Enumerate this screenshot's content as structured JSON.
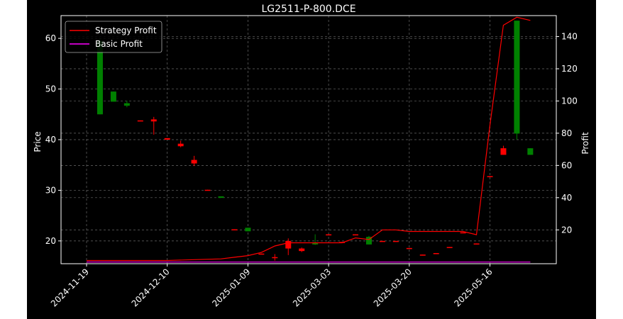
{
  "chart_data": {
    "type": "candlestick_with_profit_lines",
    "title": "LG2511-P-800.DCE",
    "ylabel_left": "Price",
    "ylabel_right": "Profit",
    "xlabel": "",
    "ylim_left": [
      15.5,
      64.5
    ],
    "ylim_right": [
      -1,
      153
    ],
    "yticks_left": [
      20,
      30,
      40,
      50,
      60
    ],
    "yticks_right": [
      20,
      40,
      60,
      80,
      100,
      120,
      140
    ],
    "xticks": [
      {
        "index": 0,
        "label": "2024-11-19"
      },
      {
        "index": 6,
        "label": "2024-12-10"
      },
      {
        "index": 12,
        "label": "2025-01-09"
      },
      {
        "index": 18,
        "label": "2025-03-03"
      },
      {
        "index": 24,
        "label": "2025-03-20"
      },
      {
        "index": 30,
        "label": "2025-05-16"
      }
    ],
    "grid": true,
    "legend_position": "top-left",
    "colors": {
      "background": "#000000",
      "up": "#008000",
      "down": "#ff0000",
      "strategy": "#ff0000",
      "basic": "#ff00ff",
      "grid": "#6a6a6a",
      "text": "#ffffff"
    },
    "candles": [
      {
        "i": 1,
        "open": 45.0,
        "close": 59.5,
        "high": 60.0,
        "low": 45.0
      },
      {
        "i": 2,
        "open": 47.5,
        "close": 49.5,
        "high": 49.5,
        "low": 47.5
      },
      {
        "i": 3,
        "open": 46.7,
        "close": 47.2,
        "high": 47.7,
        "low": 46.4
      },
      {
        "i": 4,
        "open": 43.8,
        "close": 43.7,
        "high": 43.8,
        "low": 43.7
      },
      {
        "i": 5,
        "open": 44.0,
        "close": 43.6,
        "high": 44.5,
        "low": 41.0
      },
      {
        "i": 6,
        "open": 40.3,
        "close": 40.0,
        "high": 40.3,
        "low": 40.0
      },
      {
        "i": 7,
        "open": 39.2,
        "close": 38.7,
        "high": 39.8,
        "low": 38.5
      },
      {
        "i": 8,
        "open": 36.0,
        "close": 35.3,
        "high": 36.8,
        "low": 34.8
      },
      {
        "i": 9,
        "open": 30.1,
        "close": 30.0,
        "high": 30.1,
        "low": 30.0
      },
      {
        "i": 10,
        "open": 28.5,
        "close": 28.8,
        "high": 28.8,
        "low": 28.5
      },
      {
        "i": 11,
        "open": 22.3,
        "close": 22.2,
        "high": 22.3,
        "low": 22.2
      },
      {
        "i": 12,
        "open": 21.9,
        "close": 22.6,
        "high": 22.6,
        "low": 21.9
      },
      {
        "i": 13,
        "open": 17.5,
        "close": 17.4,
        "high": 17.5,
        "low": 17.4
      },
      {
        "i": 14,
        "open": 16.8,
        "close": 16.6,
        "high": 17.4,
        "low": 16.1
      },
      {
        "i": 15,
        "open": 20.0,
        "close": 18.5,
        "high": 20.5,
        "low": 17.2
      },
      {
        "i": 16,
        "open": 18.5,
        "close": 18.0,
        "high": 18.7,
        "low": 17.8
      },
      {
        "i": 17,
        "open": 19.3,
        "close": 19.6,
        "high": 21.3,
        "low": 19.2
      },
      {
        "i": 18,
        "open": 21.3,
        "close": 21.2,
        "high": 21.3,
        "low": 21.2
      },
      {
        "i": 19,
        "open": 19.8,
        "close": 19.7,
        "high": 19.8,
        "low": 19.7
      },
      {
        "i": 20,
        "open": 21.3,
        "close": 21.2,
        "high": 21.3,
        "low": 21.2
      },
      {
        "i": 21,
        "open": 19.3,
        "close": 20.8,
        "high": 21.0,
        "low": 19.3
      },
      {
        "i": 22,
        "open": 20.0,
        "close": 19.9,
        "high": 20.0,
        "low": 19.9
      },
      {
        "i": 23,
        "open": 20.0,
        "close": 19.9,
        "high": 20.0,
        "low": 19.9
      },
      {
        "i": 24,
        "open": 18.6,
        "close": 18.5,
        "high": 18.6,
        "low": 18.5
      },
      {
        "i": 25,
        "open": 17.3,
        "close": 17.2,
        "high": 17.3,
        "low": 17.2
      },
      {
        "i": 26,
        "open": 17.6,
        "close": 17.5,
        "high": 17.6,
        "low": 17.5
      },
      {
        "i": 27,
        "open": 18.8,
        "close": 18.7,
        "high": 18.8,
        "low": 18.7
      },
      {
        "i": 28,
        "open": 21.7,
        "close": 21.6,
        "high": 21.7,
        "low": 21.6
      },
      {
        "i": 29,
        "open": 19.5,
        "close": 19.4,
        "high": 19.5,
        "low": 19.4
      },
      {
        "i": 30,
        "open": 32.8,
        "close": 32.7,
        "high": 32.8,
        "low": 32.7
      },
      {
        "i": 31,
        "open": 38.3,
        "close": 37.0,
        "high": 38.8,
        "low": 37.0
      },
      {
        "i": 32,
        "open": 41.2,
        "close": 63.5,
        "high": 63.5,
        "low": 40.0
      },
      {
        "i": 33,
        "open": 37.0,
        "close": 38.3,
        "high": 38.3,
        "low": 37.0
      }
    ],
    "series": [
      {
        "name": "Strategy Profit",
        "color": "#ff0000",
        "x": [
          0,
          2,
          4,
          6,
          8,
          10,
          11,
          12,
          13,
          14,
          15,
          16,
          18,
          19,
          20,
          21,
          22,
          23,
          24,
          25,
          26,
          27,
          28,
          29,
          30,
          31,
          32,
          33
        ],
        "values": [
          1,
          1,
          1,
          1,
          1.5,
          2,
          3,
          4,
          6,
          10,
          12,
          12,
          12,
          12,
          15,
          14,
          20,
          20,
          19,
          19,
          19,
          19,
          19,
          17,
          85,
          147,
          152,
          150
        ]
      },
      {
        "name": "Basic Profit",
        "color": "#ff00ff",
        "x": [
          0,
          33
        ],
        "values": [
          0,
          0
        ]
      }
    ]
  }
}
